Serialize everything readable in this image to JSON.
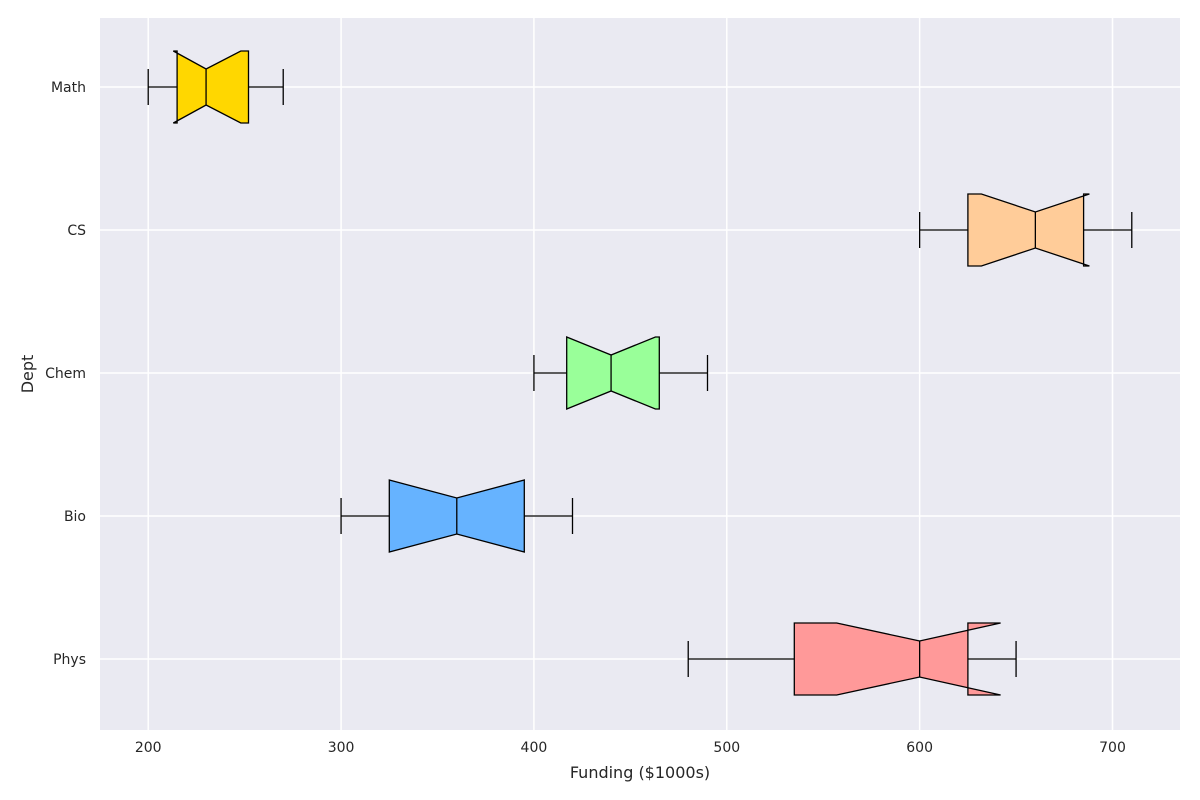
{
  "chart_data": {
    "type": "boxplot",
    "orientation": "horizontal",
    "notched": true,
    "title": "",
    "xlabel": "Funding ($1000s)",
    "ylabel": "Dept",
    "xlim": [
      175,
      735
    ],
    "xticks": [
      200,
      300,
      400,
      500,
      600,
      700
    ],
    "grid": true,
    "categories": [
      "Phys",
      "Bio",
      "Chem",
      "CS",
      "Math"
    ],
    "boxes": [
      {
        "name": "Phys",
        "whisker_low": 480,
        "q1": 535,
        "median": 600,
        "q3": 625,
        "whisker_high": 650,
        "notch_low": 557,
        "notch_high": 642,
        "color": "#ff9999"
      },
      {
        "name": "Bio",
        "whisker_low": 300,
        "q1": 325,
        "median": 360,
        "q3": 395,
        "whisker_high": 420,
        "notch_low": 325,
        "notch_high": 395,
        "color": "#66b3ff"
      },
      {
        "name": "Chem",
        "whisker_low": 400,
        "q1": 417,
        "median": 440,
        "q3": 465,
        "whisker_high": 490,
        "notch_low": 417,
        "notch_high": 463,
        "color": "#99ff99"
      },
      {
        "name": "CS",
        "whisker_low": 600,
        "q1": 625,
        "median": 660,
        "q3": 685,
        "whisker_high": 710,
        "notch_low": 632,
        "notch_high": 688,
        "color": "#ffcc99"
      },
      {
        "name": "Math",
        "whisker_low": 200,
        "q1": 215,
        "median": 230,
        "q3": 252,
        "whisker_high": 270,
        "notch_low": 213,
        "notch_high": 248,
        "color": "#ffd700"
      }
    ],
    "style": {
      "background": "#ffffff",
      "plot_background": "#eaeaf2",
      "grid_color": "#ffffff",
      "edge_color": "#000000",
      "text_color": "#262626"
    }
  }
}
